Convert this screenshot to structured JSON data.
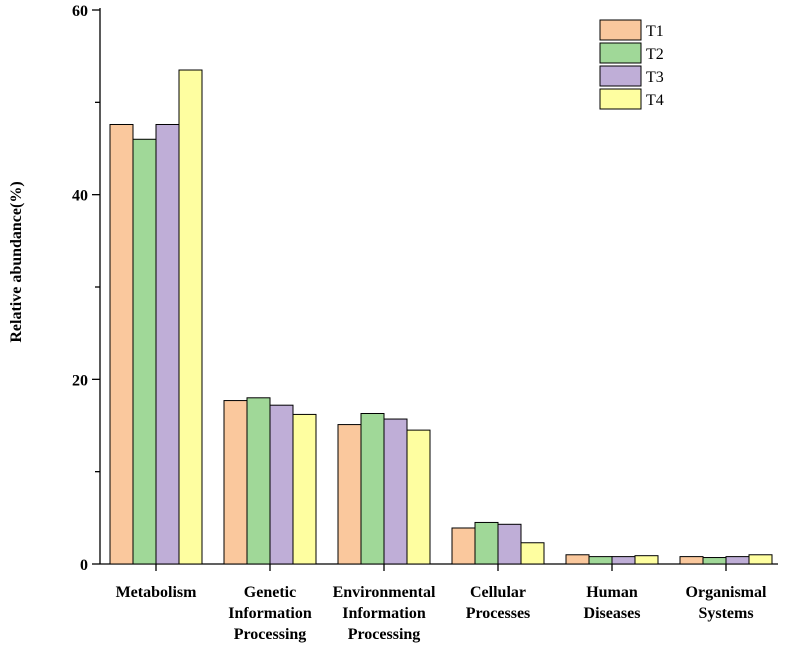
{
  "chart_data": {
    "type": "bar",
    "title": "",
    "xlabel": "",
    "ylabel": "Relative abundance(%)",
    "ylim": [
      0,
      60
    ],
    "yticks_major": [
      0,
      20,
      40,
      60
    ],
    "yticks_minor": [
      10,
      30,
      50
    ],
    "categories": [
      [
        "Metabolism"
      ],
      [
        "Genetic",
        "Information",
        "Processing"
      ],
      [
        "Environmental",
        "Information",
        "Processing"
      ],
      [
        "Cellular",
        "Processes"
      ],
      [
        "Human",
        "Diseases"
      ],
      [
        "Organismal",
        "Systems"
      ]
    ],
    "series": [
      {
        "name": "T1",
        "color": "#FAC89D",
        "values": [
          47.6,
          17.7,
          15.1,
          3.9,
          1.0,
          0.8
        ]
      },
      {
        "name": "T2",
        "color": "#A0D898",
        "values": [
          46.0,
          18.0,
          16.3,
          4.5,
          0.8,
          0.7
        ]
      },
      {
        "name": "T3",
        "color": "#BFAED7",
        "values": [
          47.6,
          17.2,
          15.7,
          4.3,
          0.8,
          0.8
        ]
      },
      {
        "name": "T4",
        "color": "#FEFEA0",
        "values": [
          53.5,
          16.2,
          14.5,
          2.3,
          0.9,
          1.0
        ]
      }
    ],
    "legend_position": "top-right",
    "grid": false
  }
}
